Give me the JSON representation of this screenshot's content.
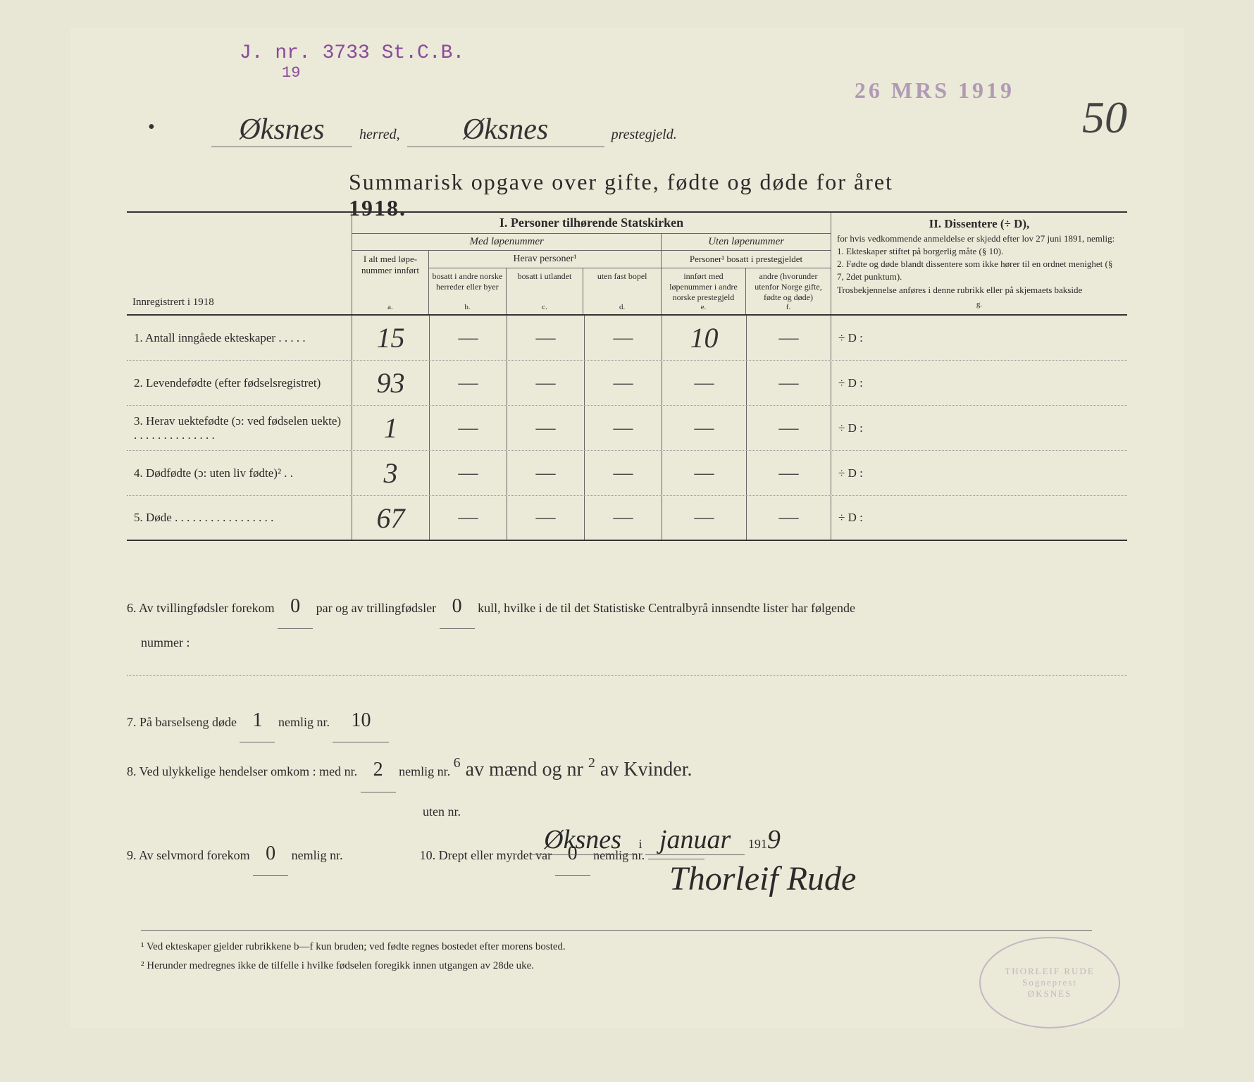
{
  "stamps": {
    "top_left_line1": "J. nr. 3733 St.C.B.",
    "top_left_line2": "19",
    "top_right": "26 MRS 1919"
  },
  "page_number_hw": "50",
  "header": {
    "herred_hw": "Øksnes",
    "label_herred": "herred,",
    "prestegjeld_hw": "Øksnes",
    "label_prestegjeld": "prestegjeld."
  },
  "title": {
    "text": "Summarisk opgave over gifte, fødte og døde for året",
    "year": "1918."
  },
  "table": {
    "col_label_header": "Innregistrert i 1918",
    "section_i_title": "I. Personer tilhørende Statskirken",
    "sub_med": "Med løpenummer",
    "sub_uten": "Uten løpenummer",
    "col_a": {
      "text": "I alt med løpe-nummer innført",
      "letter": "a."
    },
    "herav_title": "Herav personer¹",
    "col_b": {
      "text": "bosatt i andre norske herreder eller byer",
      "letter": "b."
    },
    "col_c": {
      "text": "bosatt i utlandet",
      "letter": "c."
    },
    "col_d": {
      "text": "uten fast bopel",
      "letter": "d."
    },
    "ef_title": "Personer¹ bosatt i prestegjeldet",
    "col_e": {
      "text": "innført med løpenummer i andre norske prestegjeld",
      "letter": "e."
    },
    "col_f": {
      "text": "andre (hvorunder utenfor Norge gifte, fødte og døde)",
      "letter": "f."
    },
    "section_ii_title": "II. Dissentere (÷ D),",
    "section_ii_body": "for hvis vedkommende anmeldelse er skjedd efter lov 27 juni 1891, nemlig:\n1. Ekteskaper stiftet på borgerlig måte (§ 10).\n2. Fødte og døde blandt dissentere som ikke hører til en ordnet menighet (§ 7, 2det punktum).\nTrosbekjennelse anføres i denne rubrikk eller på skjemaets bakside",
    "col_g_letter": "g."
  },
  "rows": [
    {
      "num": "1.",
      "label": "Antall inngåede ekteskaper . . . . .",
      "a": "15",
      "b": "—",
      "c": "—",
      "d": "—",
      "e": "10",
      "f": "—",
      "g": "÷ D :"
    },
    {
      "num": "2.",
      "label": "Levendefødte (efter fødselsregistret)",
      "a": "93",
      "b": "—",
      "c": "—",
      "d": "—",
      "e": "—",
      "f": "—",
      "g": "÷ D :"
    },
    {
      "num": "3.",
      "label": "Herav uektefødte (ɔ: ved fødselen uekte) . . . . . . . . . . . . . .",
      "a": "1",
      "b": "—",
      "c": "—",
      "d": "—",
      "e": "—",
      "f": "—",
      "g": "÷ D :"
    },
    {
      "num": "4.",
      "label": "Dødfødte (ɔ: uten liv fødte)² . .",
      "a": "3",
      "b": "—",
      "c": "—",
      "d": "—",
      "e": "—",
      "f": "—",
      "g": "÷ D :"
    },
    {
      "num": "5.",
      "label": "Døde . . . . . . . . . . . . . . . . .",
      "a": "67",
      "b": "—",
      "c": "—",
      "d": "—",
      "e": "—",
      "f": "—",
      "g": "÷ D :"
    }
  ],
  "lower": {
    "q6_pre": "6. Av tvillingfødsler forekom",
    "q6_val1": "0",
    "q6_mid": "par og av trillingfødsler",
    "q6_val2": "0",
    "q6_post": "kull, hvilke i de til det Statistiske Centralbyrå innsendte lister har følgende",
    "q6_line2": "nummer :",
    "q7_pre": "7. På barselseng døde",
    "q7_val1": "1",
    "q7_mid": "nemlig nr.",
    "q7_val2": "10",
    "q8_pre": "8. Ved ulykkelige hendelser omkom :  med nr.",
    "q8_val1": "2",
    "q8_mid": "nemlig nr.",
    "q8_hw_super1": "6",
    "q8_hw_a": "av mænd og nr",
    "q8_hw_super2": "2",
    "q8_hw_b": "av Kvinder.",
    "q8_sub": "uten nr.",
    "q9_pre": "9. Av selvmord forekom",
    "q9_val": "0",
    "q9_mid": "nemlig nr.",
    "q10_pre": "10. Drept eller myrdet var",
    "q10_val": "0",
    "q10_mid": "nemlig nr."
  },
  "signature": {
    "place_hw": "Øksnes",
    "label_i": "i",
    "month_hw": "januar",
    "year_pre": "191",
    "year_hw": "9",
    "name_hw": "Thorleif Rude"
  },
  "footnotes": {
    "f1": "¹  Ved ekteskaper gjelder rubrikkene b—f kun bruden; ved fødte regnes bostedet efter morens bosted.",
    "f2": "²  Herunder medregnes ikke de tilfelle i hvilke fødselen foregikk innen utgangen av 28de uke."
  },
  "seal": {
    "line1": "THORLEIF RUDE",
    "line2": "Sogneprest",
    "line3": "ØKSNES"
  }
}
